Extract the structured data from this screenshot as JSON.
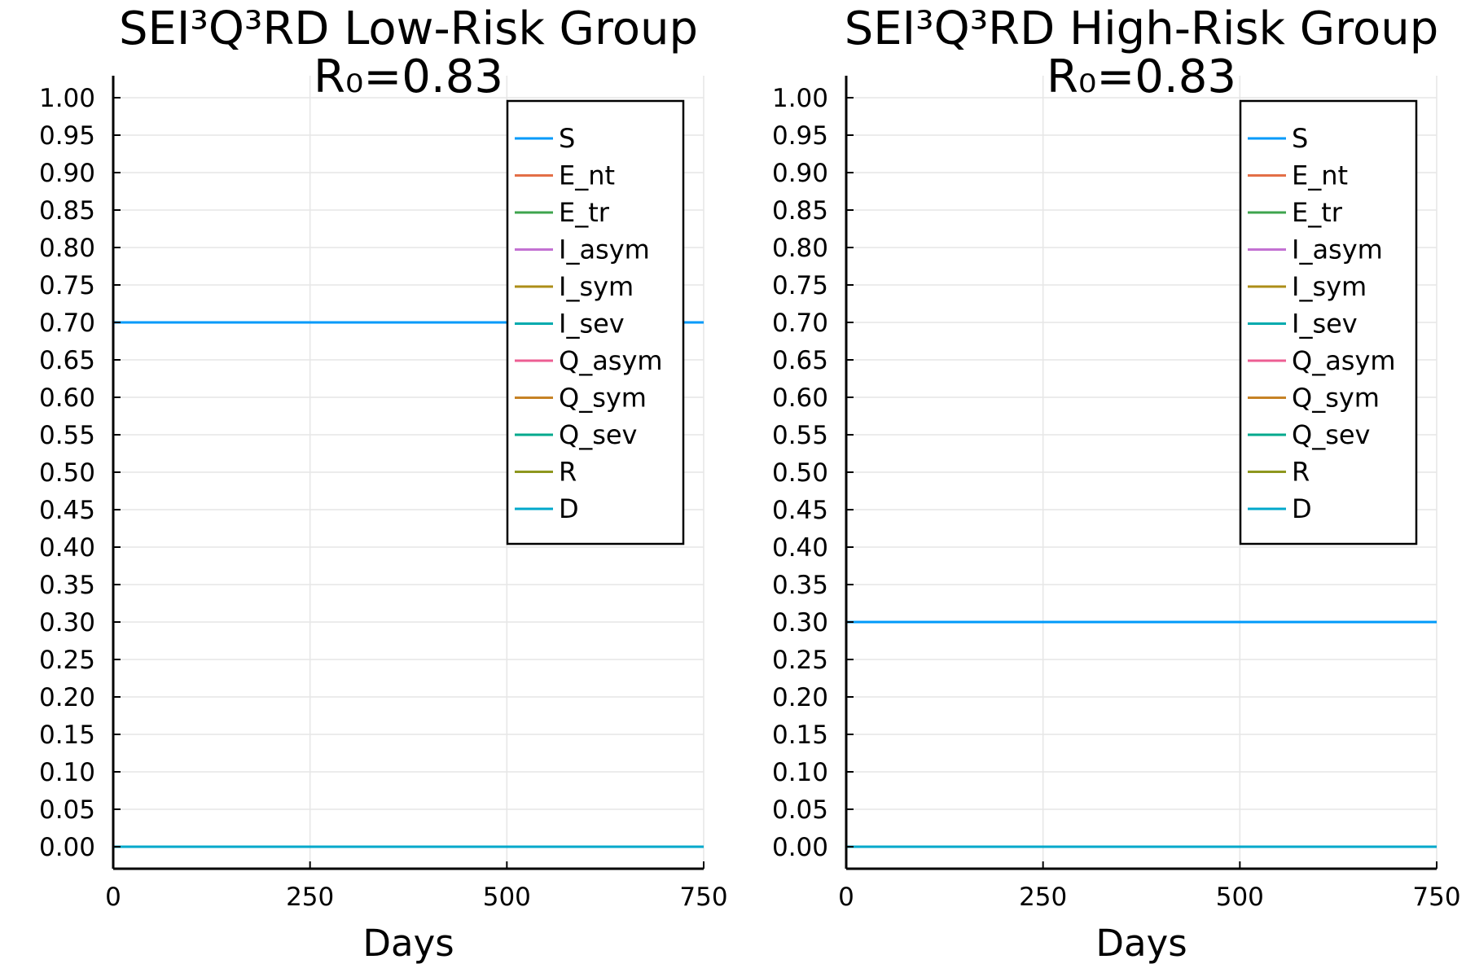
{
  "chart_data": [
    {
      "type": "line",
      "title": "SEI³Q³RD Low-Risk Group",
      "subtitle": "R₀=0.83",
      "xlabel": "Days",
      "ylabel": "",
      "xlim": [
        0,
        750
      ],
      "ylim": [
        0,
        1
      ],
      "xticks": [
        "0",
        "250",
        "500",
        "750"
      ],
      "yticks": [
        "0.00",
        "0.05",
        "0.10",
        "0.15",
        "0.20",
        "0.25",
        "0.30",
        "0.35",
        "0.40",
        "0.45",
        "0.50",
        "0.55",
        "0.60",
        "0.65",
        "0.70",
        "0.75",
        "0.80",
        "0.85",
        "0.90",
        "0.95",
        "1.00"
      ],
      "grid": true,
      "legend_position": "top-right",
      "series": [
        {
          "name": "S",
          "color": "#009AFA",
          "x": [
            0,
            750
          ],
          "y": [
            0.7,
            0.7
          ]
        },
        {
          "name": "E_nt",
          "color": "#E36F47",
          "x": [
            0,
            750
          ],
          "y": [
            0,
            0
          ]
        },
        {
          "name": "E_tr",
          "color": "#3EA44E",
          "x": [
            0,
            750
          ],
          "y": [
            0,
            0
          ]
        },
        {
          "name": "I_asym",
          "color": "#C371D2",
          "x": [
            0,
            750
          ],
          "y": [
            0,
            0
          ]
        },
        {
          "name": "I_sym",
          "color": "#AC8E18",
          "x": [
            0,
            750
          ],
          "y": [
            0,
            0
          ]
        },
        {
          "name": "I_sev",
          "color": "#00AAAE",
          "x": [
            0,
            750
          ],
          "y": [
            0,
            0
          ]
        },
        {
          "name": "Q_asym",
          "color": "#ED5E93",
          "x": [
            0,
            750
          ],
          "y": [
            0,
            0
          ]
        },
        {
          "name": "Q_sym",
          "color": "#C68225",
          "x": [
            0,
            750
          ],
          "y": [
            0,
            0
          ]
        },
        {
          "name": "Q_sev",
          "color": "#00A98D",
          "x": [
            0,
            750
          ],
          "y": [
            0,
            0
          ]
        },
        {
          "name": "R",
          "color": "#8E971E",
          "x": [
            0,
            750
          ],
          "y": [
            0,
            0
          ]
        },
        {
          "name": "D",
          "color": "#00A8CB",
          "x": [
            0,
            750
          ],
          "y": [
            0,
            0
          ]
        }
      ]
    },
    {
      "type": "line",
      "title": "SEI³Q³RD High-Risk Group",
      "subtitle": "R₀=0.83",
      "xlabel": "Days",
      "ylabel": "",
      "xlim": [
        0,
        750
      ],
      "ylim": [
        0,
        1
      ],
      "xticks": [
        "0",
        "250",
        "500",
        "750"
      ],
      "yticks": [
        "0.00",
        "0.05",
        "0.10",
        "0.15",
        "0.20",
        "0.25",
        "0.30",
        "0.35",
        "0.40",
        "0.45",
        "0.50",
        "0.55",
        "0.60",
        "0.65",
        "0.70",
        "0.75",
        "0.80",
        "0.85",
        "0.90",
        "0.95",
        "1.00"
      ],
      "grid": true,
      "legend_position": "top-right",
      "series": [
        {
          "name": "S",
          "color": "#009AFA",
          "x": [
            0,
            750
          ],
          "y": [
            0.3,
            0.3
          ]
        },
        {
          "name": "E_nt",
          "color": "#E36F47",
          "x": [
            0,
            750
          ],
          "y": [
            0,
            0
          ]
        },
        {
          "name": "E_tr",
          "color": "#3EA44E",
          "x": [
            0,
            750
          ],
          "y": [
            0,
            0
          ]
        },
        {
          "name": "I_asym",
          "color": "#C371D2",
          "x": [
            0,
            750
          ],
          "y": [
            0,
            0
          ]
        },
        {
          "name": "I_sym",
          "color": "#AC8E18",
          "x": [
            0,
            750
          ],
          "y": [
            0,
            0
          ]
        },
        {
          "name": "I_sev",
          "color": "#00AAAE",
          "x": [
            0,
            750
          ],
          "y": [
            0,
            0
          ]
        },
        {
          "name": "Q_asym",
          "color": "#ED5E93",
          "x": [
            0,
            750
          ],
          "y": [
            0,
            0
          ]
        },
        {
          "name": "Q_sym",
          "color": "#C68225",
          "x": [
            0,
            750
          ],
          "y": [
            0,
            0
          ]
        },
        {
          "name": "Q_sev",
          "color": "#00A98D",
          "x": [
            0,
            750
          ],
          "y": [
            0,
            0
          ]
        },
        {
          "name": "R",
          "color": "#8E971E",
          "x": [
            0,
            750
          ],
          "y": [
            0,
            0
          ]
        },
        {
          "name": "D",
          "color": "#00A8CB",
          "x": [
            0,
            750
          ],
          "y": [
            0,
            0
          ]
        }
      ]
    }
  ]
}
